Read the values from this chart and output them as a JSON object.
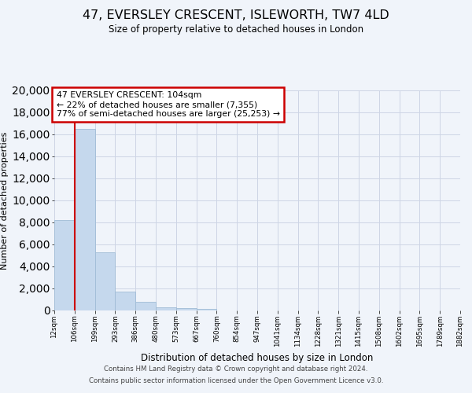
{
  "title": "47, EVERSLEY CRESCENT, ISLEWORTH, TW7 4LD",
  "subtitle": "Size of property relative to detached houses in London",
  "xlabel": "Distribution of detached houses by size in London",
  "ylabel": "Number of detached properties",
  "bar_heights": [
    8200,
    16500,
    5300,
    1750,
    800,
    300,
    200,
    150,
    0,
    0,
    0,
    0,
    0,
    0,
    0,
    0,
    0,
    0,
    0,
    0
  ],
  "bar_labels": [
    "12sqm",
    "106sqm",
    "199sqm",
    "293sqm",
    "386sqm",
    "480sqm",
    "573sqm",
    "667sqm",
    "760sqm",
    "854sqm",
    "947sqm",
    "1041sqm",
    "1134sqm",
    "1228sqm",
    "1321sqm",
    "1415sqm",
    "1508sqm",
    "1602sqm",
    "1695sqm",
    "1789sqm",
    "1882sqm"
  ],
  "bar_color": "#c5d8ed",
  "bar_edge_color": "#a0bcd6",
  "red_line_x": 0.5,
  "annotation_title": "47 EVERSLEY CRESCENT: 104sqm",
  "annotation_line1": "← 22% of detached houses are smaller (7,355)",
  "annotation_line2": "77% of semi-detached houses are larger (25,253) →",
  "annotation_box_color": "#ffffff",
  "annotation_border_color": "#cc0000",
  "ylim": [
    0,
    20000
  ],
  "yticks": [
    0,
    2000,
    4000,
    6000,
    8000,
    10000,
    12000,
    14000,
    16000,
    18000,
    20000
  ],
  "grid_color": "#cdd5e5",
  "footer_line1": "Contains HM Land Registry data © Crown copyright and database right 2024.",
  "footer_line2": "Contains public sector information licensed under the Open Government Licence v3.0.",
  "bg_color": "#f0f4fa"
}
